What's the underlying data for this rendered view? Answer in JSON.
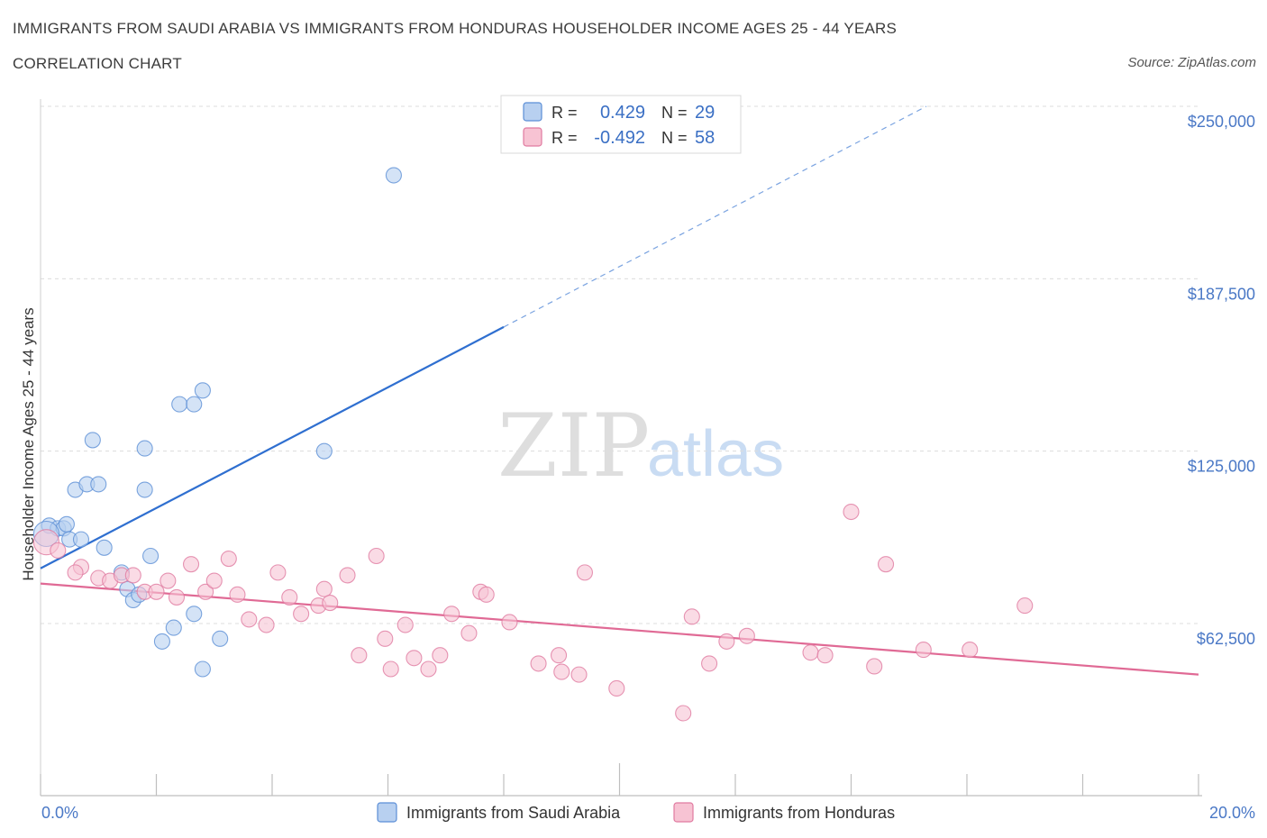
{
  "header": {
    "title": "IMMIGRANTS FROM SAUDI ARABIA VS IMMIGRANTS FROM HONDURAS HOUSEHOLDER INCOME AGES 25 - 44 YEARS",
    "subtitle": "CORRELATION CHART",
    "source": "Source: ZipAtlas.com"
  },
  "watermark": {
    "zip": "ZIP",
    "atlas": "atlas"
  },
  "chart_data": {
    "type": "scatter",
    "xlabel": "",
    "ylabel": "Householder Income Ages 25 - 44 years",
    "xlim": [
      0,
      20
    ],
    "ylim": [
      0,
      250000
    ],
    "x_tick_labels": [
      "0.0%",
      "20.0%"
    ],
    "y_ticks": [
      {
        "value": 250000,
        "label": "$250,000"
      },
      {
        "value": 187500,
        "label": "$187,500"
      },
      {
        "value": 125000,
        "label": "$125,000"
      },
      {
        "value": 62500,
        "label": "$62,500"
      }
    ],
    "grid": true,
    "legend_position": "bottom-center",
    "series": [
      {
        "name": "Immigrants from Saudi Arabia",
        "color": "#5b8ed6",
        "fill": "#b8d0f0",
        "R": "0.429",
        "N": "29",
        "trend": {
          "x0": 0.0,
          "y0": 82500,
          "x1": 8.0,
          "y1": 170000,
          "dash_to_x": 15.3,
          "dash_to_y": 250000
        },
        "points": [
          [
            0.15,
            98000
          ],
          [
            0.3,
            97000
          ],
          [
            0.4,
            97000
          ],
          [
            0.45,
            98500
          ],
          [
            0.5,
            93000
          ],
          [
            0.7,
            93000
          ],
          [
            0.6,
            111000
          ],
          [
            0.8,
            113000
          ],
          [
            1.0,
            113000
          ],
          [
            1.1,
            90000
          ],
          [
            1.4,
            81000
          ],
          [
            1.5,
            75000
          ],
          [
            1.6,
            71000
          ],
          [
            0.9,
            129000
          ],
          [
            1.8,
            126000
          ],
          [
            1.8,
            111000
          ],
          [
            1.9,
            87000
          ],
          [
            2.1,
            56000
          ],
          [
            2.3,
            61000
          ],
          [
            2.4,
            142000
          ],
          [
            2.65,
            142000
          ],
          [
            2.8,
            147000
          ],
          [
            2.65,
            66000
          ],
          [
            3.1,
            57000
          ],
          [
            2.8,
            46000
          ],
          [
            4.9,
            125000
          ],
          [
            6.1,
            225000
          ],
          [
            1.7,
            73000
          ],
          [
            0.1,
            95000
          ]
        ]
      },
      {
        "name": "Immigrants from Honduras",
        "color": "#e07aa0",
        "fill": "#f7c3d3",
        "R": "-0.492",
        "N": "58",
        "trend": {
          "x0": 0.0,
          "y0": 77000,
          "x1": 20.0,
          "y1": 44000
        },
        "points": [
          [
            0.1,
            92000
          ],
          [
            0.3,
            89000
          ],
          [
            0.7,
            83000
          ],
          [
            1.0,
            79000
          ],
          [
            1.2,
            78000
          ],
          [
            1.4,
            80000
          ],
          [
            1.6,
            80000
          ],
          [
            1.8,
            74000
          ],
          [
            2.0,
            74000
          ],
          [
            2.2,
            78000
          ],
          [
            2.35,
            72000
          ],
          [
            2.6,
            84000
          ],
          [
            2.85,
            74000
          ],
          [
            3.0,
            78000
          ],
          [
            3.25,
            86000
          ],
          [
            3.4,
            73000
          ],
          [
            3.6,
            64000
          ],
          [
            3.9,
            62000
          ],
          [
            4.1,
            81000
          ],
          [
            4.3,
            72000
          ],
          [
            4.5,
            66000
          ],
          [
            4.8,
            69000
          ],
          [
            4.9,
            75000
          ],
          [
            5.0,
            70000
          ],
          [
            5.3,
            80000
          ],
          [
            5.5,
            51000
          ],
          [
            5.8,
            87000
          ],
          [
            5.95,
            57000
          ],
          [
            6.05,
            46000
          ],
          [
            6.3,
            62000
          ],
          [
            6.45,
            50000
          ],
          [
            6.7,
            46000
          ],
          [
            6.9,
            51000
          ],
          [
            7.1,
            66000
          ],
          [
            7.4,
            59000
          ],
          [
            7.6,
            74000
          ],
          [
            7.7,
            73000
          ],
          [
            8.1,
            63000
          ],
          [
            8.6,
            48000
          ],
          [
            8.95,
            51000
          ],
          [
            9.0,
            45000
          ],
          [
            9.3,
            44000
          ],
          [
            9.4,
            81000
          ],
          [
            9.95,
            39000
          ],
          [
            11.1,
            30000
          ],
          [
            11.25,
            65000
          ],
          [
            11.55,
            48000
          ],
          [
            11.85,
            56000
          ],
          [
            12.2,
            58000
          ],
          [
            13.3,
            52000
          ],
          [
            13.55,
            51000
          ],
          [
            14.0,
            103000
          ],
          [
            14.4,
            47000
          ],
          [
            14.6,
            84000
          ],
          [
            15.25,
            53000
          ],
          [
            16.05,
            53000
          ],
          [
            17.0,
            69000
          ],
          [
            0.6,
            81000
          ]
        ]
      }
    ]
  }
}
